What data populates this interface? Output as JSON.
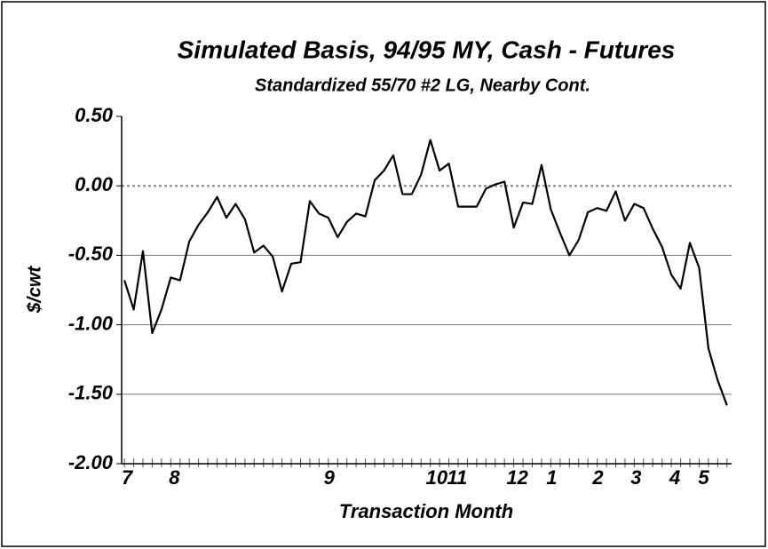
{
  "chart_data": {
    "type": "line",
    "title": "Simulated Basis, 94/95 MY, Cash - Futures",
    "subtitle": "Standardized 55/70 #2 LG, Nearby Cont.",
    "x_label": "Transaction Month",
    "y_label": "$/cwt",
    "x": [
      0,
      1,
      2,
      3,
      4,
      5,
      6,
      7,
      8,
      9,
      10,
      11,
      12,
      13,
      14,
      15,
      16,
      17,
      18,
      19,
      20,
      21,
      22,
      23,
      24,
      25,
      26,
      27,
      28,
      29,
      30,
      31,
      32,
      33,
      34,
      35,
      36,
      37,
      38,
      39,
      40,
      41,
      42,
      43,
      44,
      45,
      46,
      47,
      48,
      49,
      50,
      51,
      52,
      53,
      54,
      55,
      56,
      57,
      58,
      59,
      60,
      61,
      62,
      63,
      64,
      65
    ],
    "series": [
      {
        "name": "Basis",
        "color": "#000000",
        "values": [
          -0.68,
          -0.89,
          -0.47,
          -1.06,
          -0.89,
          -0.66,
          -0.68,
          -0.4,
          -0.28,
          -0.19,
          -0.08,
          -0.23,
          -0.13,
          -0.24,
          -0.48,
          -0.43,
          -0.51,
          -0.76,
          -0.56,
          -0.55,
          -0.11,
          -0.2,
          -0.23,
          -0.37,
          -0.26,
          -0.2,
          -0.22,
          0.04,
          0.11,
          0.22,
          -0.06,
          -0.06,
          0.08,
          0.33,
          0.11,
          0.16,
          -0.15,
          -0.15,
          -0.15,
          -0.02,
          0.01,
          0.03,
          -0.3,
          -0.12,
          -0.13,
          0.15,
          -0.17,
          -0.34,
          -0.5,
          -0.39,
          -0.19,
          -0.16,
          -0.18,
          -0.04,
          -0.25,
          -0.13,
          -0.16,
          -0.31,
          -0.44,
          -0.64,
          -0.74,
          -0.41,
          -0.59,
          -1.17,
          -1.4,
          -1.58
        ]
      }
    ],
    "xlim": [
      -0.3,
      65.5
    ],
    "xticks": [
      {
        "value": 0,
        "label": "7"
      },
      {
        "value": 5.1,
        "label": "8"
      },
      {
        "value": 21.8,
        "label": "9"
      },
      {
        "value": 33.4,
        "label": "10"
      },
      {
        "value": 35.6,
        "label": "11"
      },
      {
        "value": 42.1,
        "label": "12"
      },
      {
        "value": 45.8,
        "label": "1"
      },
      {
        "value": 50.8,
        "label": "2"
      },
      {
        "value": 54.9,
        "label": "3"
      },
      {
        "value": 59.1,
        "label": "4"
      },
      {
        "value": 62.2,
        "label": "5"
      }
    ],
    "ylim": [
      -2.0,
      0.5
    ],
    "yticks": [
      {
        "value": 0.5,
        "label": "0.50"
      },
      {
        "value": 0,
        "label": "0.00"
      },
      {
        "value": -0.5,
        "label": "-0.50"
      },
      {
        "value": -1.0,
        "label": "-1.00"
      },
      {
        "value": -1.5,
        "label": "-1.50"
      },
      {
        "value": -2.0,
        "label": "-2.00"
      }
    ],
    "grid": true,
    "zero_line_dotted": true
  }
}
